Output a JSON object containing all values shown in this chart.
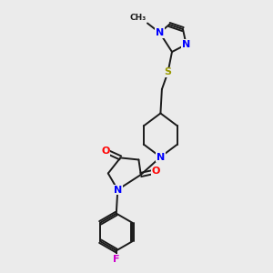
{
  "background_color": "#ebebeb",
  "bond_color": "#1a1a1a",
  "atom_colors": {
    "N": "#0000ff",
    "O": "#ff0000",
    "S": "#999900",
    "F": "#cc00cc",
    "C": "#1a1a1a"
  },
  "figsize": [
    3.0,
    3.0
  ],
  "dpi": 100
}
